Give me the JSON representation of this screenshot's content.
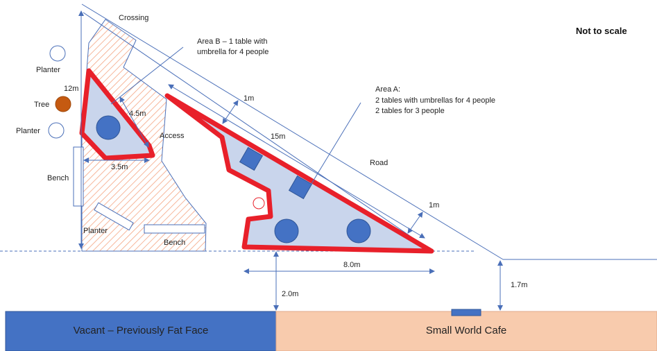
{
  "scale_note": "Not to scale",
  "labels": {
    "crossing": "Crossing",
    "area_b": "Area B – 1 table with",
    "area_b_line2": "umbrella for 4 people",
    "area_a_title": "Area A:",
    "area_a_line1": "2 tables with umbrellas for 4 people",
    "area_a_line2": "2 tables for 3 people",
    "road": "Road",
    "access": "Access",
    "planter_top": "Planter",
    "planter_mid": "Planter",
    "planter_bottom": "Planter",
    "tree": "Tree",
    "bench_left": "Bench",
    "bench_bottom": "Bench"
  },
  "dimensions": {
    "d12m": "12m",
    "d4_5m": "4.5m",
    "d3_5m": "3.5m",
    "d1m_top": "1m",
    "d15m": "15m",
    "d1m_right": "1m",
    "d8m": "8.0m",
    "d2m": "2.0m",
    "d1_7m": "1.7m"
  },
  "shops": {
    "left": "Vacant – Previously Fat Face",
    "right": "Small World Cafe"
  },
  "colors": {
    "area_fill": "#c9d5ec",
    "area_outline": "#e8202a",
    "table_fill": "#4472c4",
    "hatch": "#f4a582",
    "line": "#4a6fb8",
    "tree": "#c55a11",
    "vacant_shop": "#4472c4",
    "cafe": "#f8cbad"
  }
}
